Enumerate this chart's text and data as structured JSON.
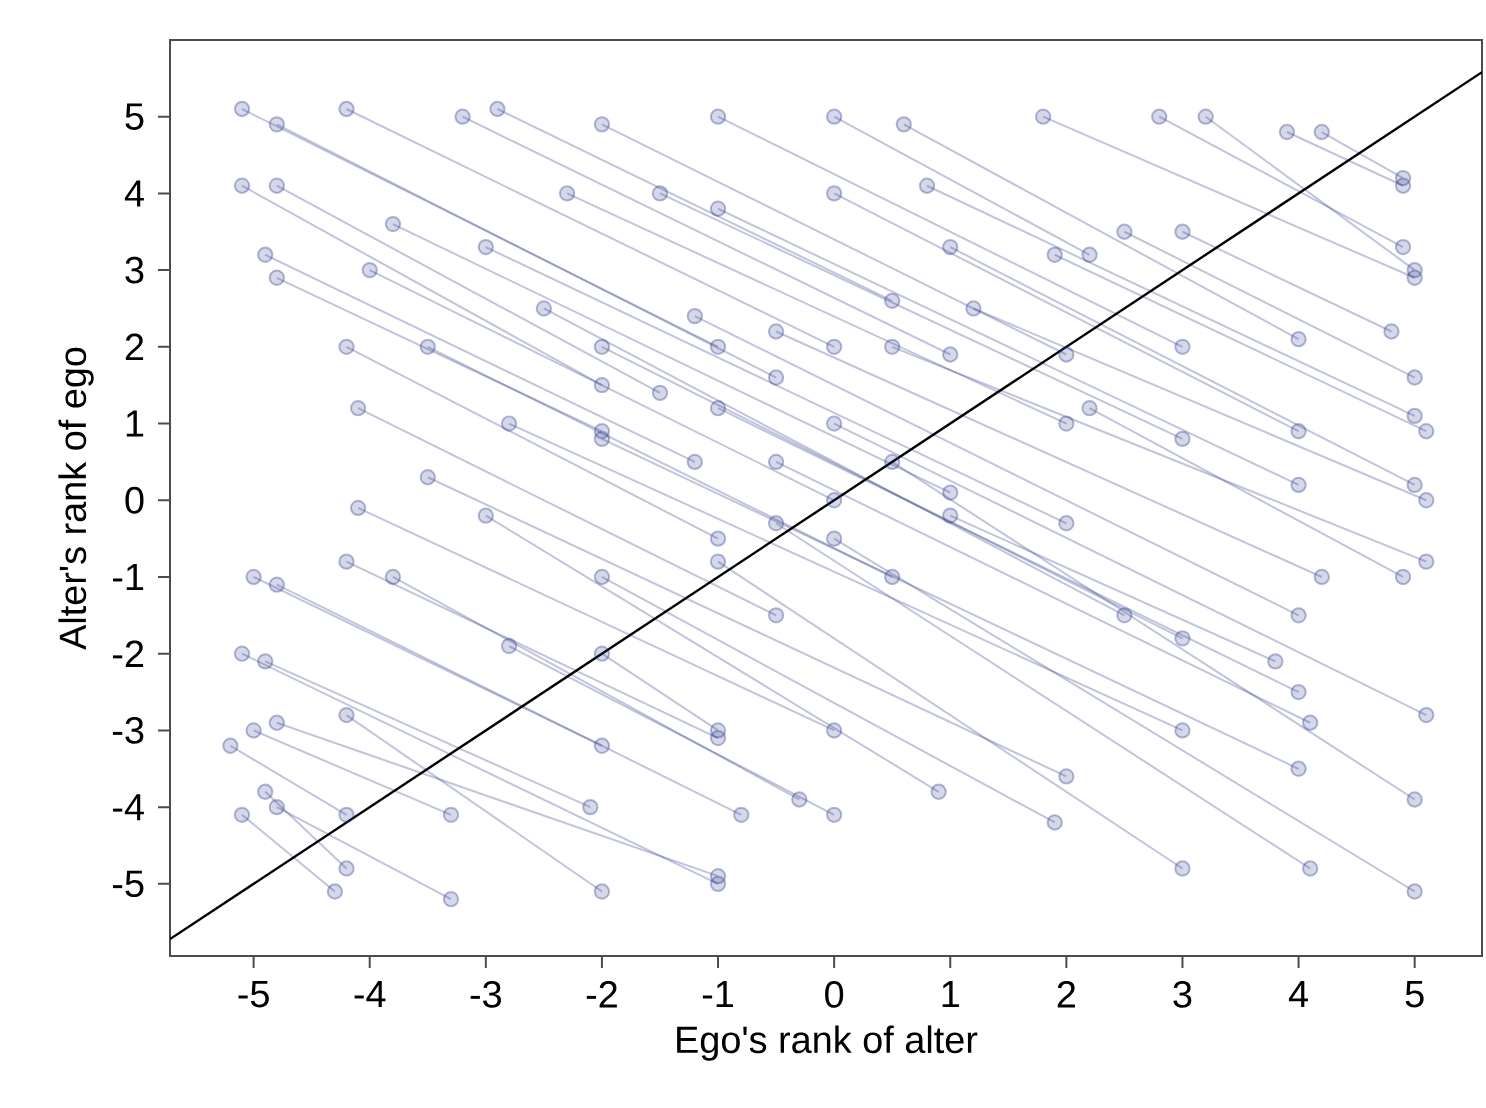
{
  "chart_data": {
    "type": "line",
    "xlabel": "Ego's rank of alter",
    "ylabel": "Alter's rank of ego",
    "xlim": [
      -5.72,
      5.58
    ],
    "ylim": [
      -5.94,
      6.0
    ],
    "xticks": [
      -5,
      -4,
      -3,
      -2,
      -1,
      0,
      1,
      2,
      3,
      4,
      5
    ],
    "yticks": [
      -5,
      -4,
      -3,
      -2,
      -1,
      0,
      1,
      2,
      3,
      4,
      5
    ],
    "series": [
      {
        "marker": "circle",
        "color": "#2e3a8c",
        "x": [
          -5.1,
          -1.0
        ],
        "values": [
          5.1,
          2.0
        ]
      },
      {
        "marker": "circle",
        "color": "#2e3a8c",
        "x": [
          -4.8,
          -0.5
        ],
        "values": [
          4.9,
          1.6
        ]
      },
      {
        "marker": "circle",
        "color": "#2e3a8c",
        "x": [
          -5.1,
          -2.0
        ],
        "values": [
          4.1,
          1.5
        ]
      },
      {
        "marker": "circle",
        "color": "#2e3a8c",
        "x": [
          -4.8,
          -1.5
        ],
        "values": [
          4.1,
          1.4
        ]
      },
      {
        "marker": "circle",
        "color": "#2e3a8c",
        "x": [
          -4.2,
          0.0
        ],
        "values": [
          5.1,
          2.0
        ]
      },
      {
        "marker": "circle",
        "color": "#2e3a8c",
        "x": [
          -3.2,
          1.0
        ],
        "values": [
          5.0,
          1.9
        ]
      },
      {
        "marker": "circle",
        "color": "#2e3a8c",
        "x": [
          -2.9,
          0.5
        ],
        "values": [
          5.1,
          2.6
        ]
      },
      {
        "marker": "circle",
        "color": "#2e3a8c",
        "x": [
          -2.0,
          2.0
        ],
        "values": [
          4.9,
          1.9
        ]
      },
      {
        "marker": "circle",
        "color": "#2e3a8c",
        "x": [
          -1.0,
          3.0
        ],
        "values": [
          5.0,
          2.0
        ]
      },
      {
        "marker": "circle",
        "color": "#2e3a8c",
        "x": [
          0.0,
          2.2
        ],
        "values": [
          5.0,
          3.2
        ]
      },
      {
        "marker": "circle",
        "color": "#2e3a8c",
        "x": [
          0.6,
          4.0
        ],
        "values": [
          4.9,
          2.1
        ]
      },
      {
        "marker": "circle",
        "color": "#2e3a8c",
        "x": [
          1.8,
          5.0
        ],
        "values": [
          5.0,
          2.9
        ]
      },
      {
        "marker": "circle",
        "color": "#2e3a8c",
        "x": [
          2.8,
          4.9
        ],
        "values": [
          5.0,
          3.3
        ]
      },
      {
        "marker": "circle",
        "color": "#2e3a8c",
        "x": [
          3.2,
          5.0
        ],
        "values": [
          5.0,
          3.0
        ]
      },
      {
        "marker": "circle",
        "color": "#2e3a8c",
        "x": [
          3.9,
          4.9
        ],
        "values": [
          4.8,
          4.1
        ]
      },
      {
        "marker": "circle",
        "color": "#2e3a8c",
        "x": [
          4.2,
          4.9
        ],
        "values": [
          4.8,
          4.2
        ]
      },
      {
        "marker": "circle",
        "color": "#2e3a8c",
        "x": [
          -4.9,
          -1.2
        ],
        "values": [
          3.2,
          0.5
        ]
      },
      {
        "marker": "circle",
        "color": "#2e3a8c",
        "x": [
          -4.8,
          -2.0
        ],
        "values": [
          2.9,
          0.9
        ]
      },
      {
        "marker": "circle",
        "color": "#2e3a8c",
        "x": [
          -4.0,
          0.0
        ],
        "values": [
          3.0,
          0.0
        ]
      },
      {
        "marker": "circle",
        "color": "#2e3a8c",
        "x": [
          -3.8,
          1.0
        ],
        "values": [
          3.6,
          0.1
        ]
      },
      {
        "marker": "circle",
        "color": "#2e3a8c",
        "x": [
          -3.0,
          2.0
        ],
        "values": [
          3.3,
          -0.3
        ]
      },
      {
        "marker": "circle",
        "color": "#2e3a8c",
        "x": [
          -2.3,
          2.0
        ],
        "values": [
          4.0,
          1.0
        ]
      },
      {
        "marker": "circle",
        "color": "#2e3a8c",
        "x": [
          -1.5,
          3.0
        ],
        "values": [
          4.0,
          0.8
        ]
      },
      {
        "marker": "circle",
        "color": "#2e3a8c",
        "x": [
          -1.0,
          4.0
        ],
        "values": [
          3.8,
          0.2
        ]
      },
      {
        "marker": "circle",
        "color": "#2e3a8c",
        "x": [
          0.0,
          4.0
        ],
        "values": [
          4.0,
          0.9
        ]
      },
      {
        "marker": "circle",
        "color": "#2e3a8c",
        "x": [
          0.8,
          5.0
        ],
        "values": [
          4.1,
          1.1
        ]
      },
      {
        "marker": "circle",
        "color": "#2e3a8c",
        "x": [
          1.0,
          5.0
        ],
        "values": [
          3.3,
          0.2
        ]
      },
      {
        "marker": "circle",
        "color": "#2e3a8c",
        "x": [
          1.9,
          5.1
        ],
        "values": [
          3.2,
          0.9
        ]
      },
      {
        "marker": "circle",
        "color": "#2e3a8c",
        "x": [
          2.5,
          5.0
        ],
        "values": [
          3.5,
          1.6
        ]
      },
      {
        "marker": "circle",
        "color": "#2e3a8c",
        "x": [
          3.0,
          4.8
        ],
        "values": [
          3.5,
          2.2
        ]
      },
      {
        "marker": "circle",
        "color": "#2e3a8c",
        "x": [
          -4.2,
          -1.0
        ],
        "values": [
          2.0,
          -0.5
        ]
      },
      {
        "marker": "circle",
        "color": "#2e3a8c",
        "x": [
          -4.1,
          -0.5
        ],
        "values": [
          1.2,
          -1.5
        ]
      },
      {
        "marker": "circle",
        "color": "#2e3a8c",
        "x": [
          -3.5,
          0.5
        ],
        "values": [
          2.0,
          -1.0
        ]
      },
      {
        "marker": "circle",
        "color": "#2e3a8c",
        "x": [
          -2.5,
          2.5
        ],
        "values": [
          2.5,
          -1.5
        ]
      },
      {
        "marker": "circle",
        "color": "#2e3a8c",
        "x": [
          -2.0,
          3.0
        ],
        "values": [
          2.0,
          -1.8
        ]
      },
      {
        "marker": "circle",
        "color": "#2e3a8c",
        "x": [
          -1.2,
          4.0
        ],
        "values": [
          2.4,
          -1.5
        ]
      },
      {
        "marker": "circle",
        "color": "#2e3a8c",
        "x": [
          -0.5,
          4.2
        ],
        "values": [
          2.2,
          -1.0
        ]
      },
      {
        "marker": "circle",
        "color": "#2e3a8c",
        "x": [
          0.5,
          5.1
        ],
        "values": [
          2.0,
          -0.8
        ]
      },
      {
        "marker": "circle",
        "color": "#2e3a8c",
        "x": [
          1.2,
          5.1
        ],
        "values": [
          2.5,
          0.0
        ]
      },
      {
        "marker": "circle",
        "color": "#2e3a8c",
        "x": [
          -4.1,
          0.0
        ],
        "values": [
          -0.1,
          -3.0
        ]
      },
      {
        "marker": "circle",
        "color": "#2e3a8c",
        "x": [
          -4.2,
          -1.0
        ],
        "values": [
          -0.8,
          -3.1
        ]
      },
      {
        "marker": "circle",
        "color": "#2e3a8c",
        "x": [
          -3.5,
          2.0
        ],
        "values": [
          0.3,
          -3.6
        ]
      },
      {
        "marker": "circle",
        "color": "#2e3a8c",
        "x": [
          -2.8,
          3.0
        ],
        "values": [
          1.0,
          -3.0
        ]
      },
      {
        "marker": "circle",
        "color": "#2e3a8c",
        "x": [
          -2.0,
          4.0
        ],
        "values": [
          0.8,
          -3.5
        ]
      },
      {
        "marker": "circle",
        "color": "#2e3a8c",
        "x": [
          -1.0,
          4.0
        ],
        "values": [
          1.2,
          -2.5
        ]
      },
      {
        "marker": "circle",
        "color": "#2e3a8c",
        "x": [
          -0.5,
          4.1
        ],
        "values": [
          0.5,
          -2.9
        ]
      },
      {
        "marker": "circle",
        "color": "#2e3a8c",
        "x": [
          0.0,
          5.1
        ],
        "values": [
          1.0,
          -2.8
        ]
      },
      {
        "marker": "circle",
        "color": "#2e3a8c",
        "x": [
          -5.0,
          -2.0
        ],
        "values": [
          -1.0,
          -3.2
        ]
      },
      {
        "marker": "circle",
        "color": "#2e3a8c",
        "x": [
          -4.8,
          -0.8
        ],
        "values": [
          -1.1,
          -4.1
        ]
      },
      {
        "marker": "circle",
        "color": "#2e3a8c",
        "x": [
          -5.1,
          -1.0
        ],
        "values": [
          -2.0,
          -5.0
        ]
      },
      {
        "marker": "circle",
        "color": "#2e3a8c",
        "x": [
          -4.9,
          -2.1
        ],
        "values": [
          -2.1,
          -4.0
        ]
      },
      {
        "marker": "circle",
        "color": "#2e3a8c",
        "x": [
          -5.0,
          -3.3
        ],
        "values": [
          -3.0,
          -4.1
        ]
      },
      {
        "marker": "circle",
        "color": "#2e3a8c",
        "x": [
          -4.8,
          -1.0
        ],
        "values": [
          -2.9,
          -4.9
        ]
      },
      {
        "marker": "circle",
        "color": "#2e3a8c",
        "x": [
          -5.2,
          -4.2
        ],
        "values": [
          -3.2,
          -4.1
        ]
      },
      {
        "marker": "circle",
        "color": "#2e3a8c",
        "x": [
          -4.9,
          -4.2
        ],
        "values": [
          -3.8,
          -4.8
        ]
      },
      {
        "marker": "circle",
        "color": "#2e3a8c",
        "x": [
          -5.1,
          -4.3
        ],
        "values": [
          -4.1,
          -5.1
        ]
      },
      {
        "marker": "circle",
        "color": "#2e3a8c",
        "x": [
          -4.8,
          -3.3
        ],
        "values": [
          -4.0,
          -5.2
        ]
      },
      {
        "marker": "circle",
        "color": "#2e3a8c",
        "x": [
          -4.2,
          -2.0
        ],
        "values": [
          -2.8,
          -5.1
        ]
      },
      {
        "marker": "circle",
        "color": "#2e3a8c",
        "x": [
          -3.0,
          0.9
        ],
        "values": [
          -0.2,
          -3.8
        ]
      },
      {
        "marker": "circle",
        "color": "#2e3a8c",
        "x": [
          -2.8,
          0.0
        ],
        "values": [
          -1.9,
          -4.1
        ]
      },
      {
        "marker": "circle",
        "color": "#2e3a8c",
        "x": [
          -2.0,
          1.9
        ],
        "values": [
          -1.0,
          -4.2
        ]
      },
      {
        "marker": "circle",
        "color": "#2e3a8c",
        "x": [
          -1.0,
          3.0
        ],
        "values": [
          -0.8,
          -4.8
        ]
      },
      {
        "marker": "circle",
        "color": "#2e3a8c",
        "x": [
          -0.5,
          4.1
        ],
        "values": [
          -0.3,
          -4.8
        ]
      },
      {
        "marker": "circle",
        "color": "#2e3a8c",
        "x": [
          0.0,
          5.0
        ],
        "values": [
          -0.5,
          -5.1
        ]
      },
      {
        "marker": "circle",
        "color": "#2e3a8c",
        "x": [
          0.5,
          5.0
        ],
        "values": [
          0.5,
          -3.9
        ]
      },
      {
        "marker": "circle",
        "color": "#2e3a8c",
        "x": [
          1.0,
          3.8
        ],
        "values": [
          -0.2,
          -2.1
        ]
      },
      {
        "marker": "circle",
        "color": "#2e3a8c",
        "x": [
          -3.8,
          -0.3
        ],
        "values": [
          -1.0,
          -3.9
        ]
      },
      {
        "marker": "circle",
        "color": "#2e3a8c",
        "x": [
          -2.0,
          -1.0
        ],
        "values": [
          -2.0,
          -3.0
        ]
      },
      {
        "marker": "circle",
        "color": "#2e3a8c",
        "x": [
          2.2,
          4.9
        ],
        "values": [
          1.2,
          -1.0
        ]
      },
      {
        "marker": "none",
        "color": "#000000",
        "x": [
          -5.72,
          5.58
        ],
        "values": [
          -5.72,
          5.58
        ]
      }
    ]
  }
}
